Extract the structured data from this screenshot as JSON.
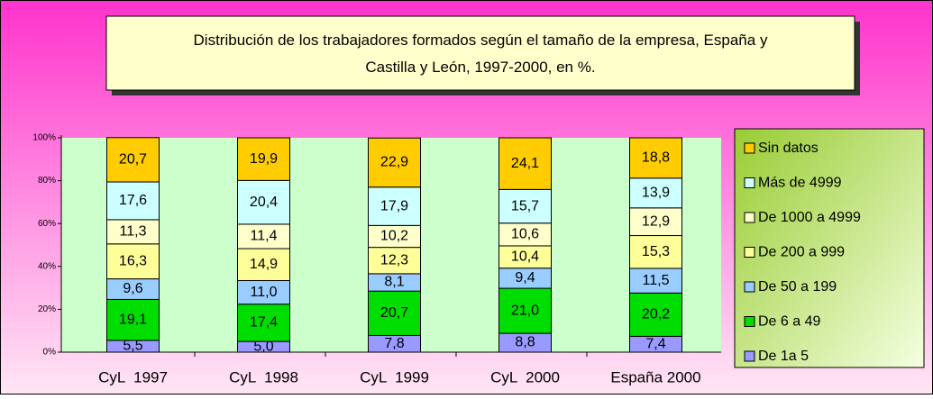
{
  "chart_data": {
    "type": "stacked_bar",
    "title": "Distribución de los trabajadores formados según el tamaño de la empresa, España y Castilla y León, 1997-2000, en %.",
    "categories": [
      "CyL  1997",
      "CyL  1998",
      "CyL  1999",
      "CyL  2000",
      "España 2000"
    ],
    "series": [
      {
        "name": "De 1a 5",
        "color": "#9999ff",
        "values": [
          5.5,
          5.0,
          7.8,
          8.8,
          7.4
        ],
        "value_labels": [
          "5,5",
          "5,0",
          "7,8",
          "8,8",
          "7,4"
        ]
      },
      {
        "name": "De 6 a 49",
        "color": "#00dd00",
        "values": [
          19.1,
          17.4,
          20.7,
          21.0,
          20.2
        ],
        "value_labels": [
          "19,1",
          "17,4",
          "20,7",
          "21,0",
          "20,2"
        ]
      },
      {
        "name": "De 50 a 199",
        "color": "#99ccff",
        "values": [
          9.6,
          11.0,
          8.1,
          9.4,
          11.5
        ],
        "value_labels": [
          "9,6",
          "11,0",
          "8,1",
          "9,4",
          "11,5"
        ]
      },
      {
        "name": "De 200 a 999",
        "color": "#ffff99",
        "values": [
          16.3,
          14.9,
          12.3,
          10.4,
          15.3
        ],
        "value_labels": [
          "16,3",
          "14,9",
          "12,3",
          "10,4",
          "15,3"
        ]
      },
      {
        "name": "De 1000 a 4999",
        "color": "#ffffcc",
        "values": [
          11.3,
          11.4,
          10.2,
          10.6,
          12.9
        ],
        "value_labels": [
          "11,3",
          "11,4",
          "10,2",
          "10,6",
          "12,9"
        ]
      },
      {
        "name": "Más de 4999",
        "color": "#ccffff",
        "values": [
          17.6,
          20.4,
          17.9,
          15.7,
          13.9
        ],
        "value_labels": [
          "17,6",
          "20,4",
          "17,9",
          "15,7",
          "13,9"
        ]
      },
      {
        "name": "Sin datos",
        "color": "#ffcc00",
        "values": [
          20.7,
          19.9,
          22.9,
          24.1,
          18.8
        ],
        "value_labels": [
          "20,7",
          "19,9",
          "22,9",
          "24,1",
          "18,8"
        ]
      }
    ],
    "ylim": [
      0,
      100
    ],
    "yticks": [
      {
        "value": 0,
        "label": "0%"
      },
      {
        "value": 20,
        "label": "20%"
      },
      {
        "value": 40,
        "label": "40%"
      },
      {
        "value": 60,
        "label": "60%"
      },
      {
        "value": 80,
        "label": "80%"
      },
      {
        "value": 100,
        "label": "100%"
      }
    ],
    "legend": "right"
  }
}
